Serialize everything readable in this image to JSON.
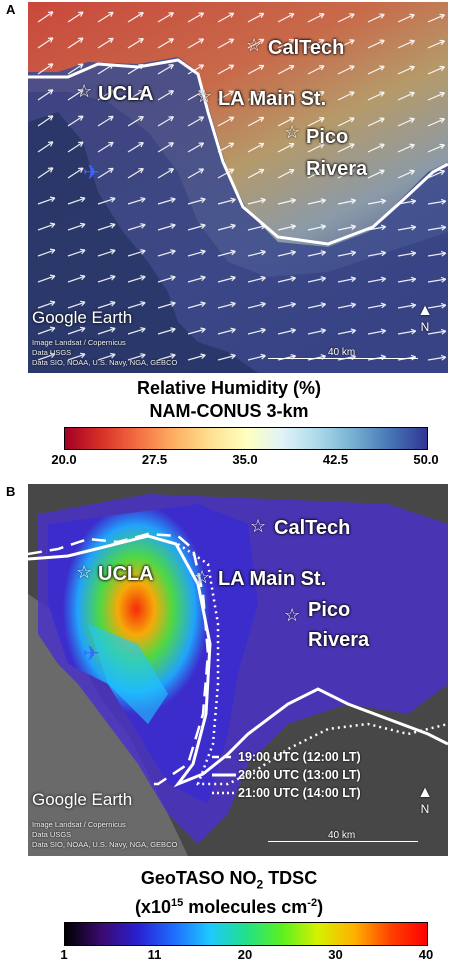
{
  "panel_a": {
    "letter": "A",
    "locations": {
      "caltech": "CalTech",
      "ucla": "UCLA",
      "la_main": "LA Main St.",
      "pico": "Pico",
      "rivera": "Rivera"
    },
    "google_earth": "Google Earth",
    "credit_lines": [
      "Image Landsat / Copernicus",
      "Data USGS",
      "Data SIO, NOAA, U.S. Navy, NGA, GEBCO"
    ],
    "scale": "40 km",
    "north": "N",
    "colorbar": {
      "title_line1": "Relative Humidity (%)",
      "title_line2": "NAM-CONUS 3-km",
      "ticks": [
        "20.0",
        "27.5",
        "35.0",
        "42.5",
        "50.0"
      ],
      "colors": [
        "#a50026",
        "#d73027",
        "#f46d43",
        "#fdae61",
        "#fee090",
        "#ffffbf",
        "#e0f3f8",
        "#abd9e9",
        "#74add1",
        "#4575b4",
        "#313695"
      ]
    }
  },
  "panel_b": {
    "letter": "B",
    "locations": {
      "caltech": "CalTech",
      "ucla": "UCLA",
      "la_main": "LA Main St.",
      "pico": "Pico",
      "rivera": "Rivera"
    },
    "google_earth": "Google Earth",
    "credit_lines": [
      "Image Landsat / Copernicus",
      "Data USGS",
      "Data SIO, NOAA, U.S. Navy, NGA, GEBCO"
    ],
    "scale": "40 km",
    "north": "N",
    "legend": [
      {
        "label": "19:00 UTC (12:00 LT)",
        "style": "dashed"
      },
      {
        "label": "20:00 UTC (13:00 LT)",
        "style": "solid"
      },
      {
        "label": "21:00 UTC (14:00 LT)",
        "style": "dotted"
      }
    ],
    "colorbar": {
      "title_main": "GeoTASO NO",
      "title_sub": "2",
      "title_rest": " TDSC",
      "title_line2_a": "(x10",
      "title_line2_sup": "15",
      "title_line2_b": " molecules cm",
      "title_line2_sup2": "-2",
      "title_line2_c": ")",
      "ticks": [
        "1",
        "11",
        "20",
        "30",
        "40"
      ],
      "colors": [
        "#000000",
        "#3b0a6e",
        "#2a1fd0",
        "#1e6cff",
        "#1fc8ff",
        "#22e08a",
        "#5cf020",
        "#d8f000",
        "#ffb000",
        "#ff4000",
        "#ff0000"
      ]
    }
  }
}
